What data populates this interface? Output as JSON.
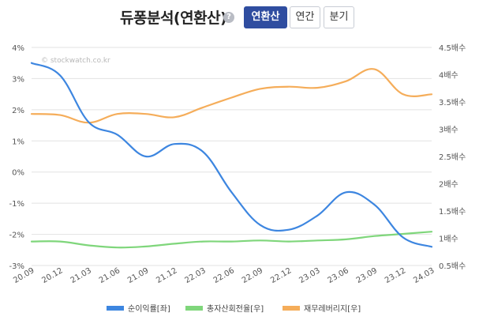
{
  "header": {
    "title": "듀퐁분석(연환산)",
    "help_glyph": "?",
    "tabs": [
      {
        "label": "연환산",
        "active": true
      },
      {
        "label": "연간",
        "active": false
      },
      {
        "label": "분기",
        "active": false
      }
    ]
  },
  "watermark": "© stockwatch.co.kr",
  "colors": {
    "roe": "#3d86e0",
    "turnover": "#7fd67b",
    "leverage": "#f5ad5a",
    "grid": "#e2e2e2"
  },
  "chart_data": {
    "type": "line",
    "x": [
      "20.09",
      "20.12",
      "21.03",
      "21.06",
      "21.09",
      "21.12",
      "22.03",
      "22.06",
      "22.09",
      "22.12",
      "23.03",
      "23.06",
      "23.09",
      "23.12",
      "24.03"
    ],
    "x_tick_labels": [
      "20.09",
      "20.12",
      "21.03",
      "21.06",
      "21.09",
      "21.12",
      "22.03",
      "22.06",
      "22.09",
      "22.12",
      "23.03",
      "23.06",
      "23.09",
      "23.12",
      "24.03"
    ],
    "left_axis": {
      "ticks": [
        "4%",
        "3%",
        "2%",
        "1%",
        "0%",
        "-1%",
        "-2%",
        "-3%"
      ],
      "ylim": [
        -3,
        4
      ]
    },
    "right_axis": {
      "ticks": [
        "4.5배수",
        "4배수",
        "3.5배수",
        "3배수",
        "2.5배수",
        "2배수",
        "1.5배수",
        "1배수",
        "0.5배수"
      ],
      "ylim": [
        0.5,
        4.5
      ]
    },
    "series": [
      {
        "name": "순이익률[좌]",
        "axis": "left",
        "color": "#3d86e0",
        "values": [
          3.5,
          3.1,
          1.6,
          1.2,
          0.5,
          0.9,
          0.65,
          -0.65,
          -1.7,
          -1.85,
          -1.4,
          -0.65,
          -1.05,
          -2.1,
          -2.4
        ]
      },
      {
        "name": "총자산회전율[우]",
        "axis": "right",
        "color": "#7fd67b",
        "values": [
          0.94,
          0.94,
          0.87,
          0.83,
          0.85,
          0.9,
          0.94,
          0.94,
          0.96,
          0.94,
          0.96,
          0.98,
          1.04,
          1.08,
          1.12
        ]
      },
      {
        "name": "재무레버리지[우]",
        "axis": "right",
        "color": "#f5ad5a",
        "values": [
          3.28,
          3.26,
          3.12,
          3.28,
          3.28,
          3.22,
          3.4,
          3.58,
          3.74,
          3.78,
          3.76,
          3.88,
          4.1,
          3.64,
          3.64
        ]
      }
    ],
    "legend": [
      "순이익률[좌]",
      "총자산회전율[우]",
      "재무레버리지[우]"
    ],
    "legend_position": "bottom",
    "grid": true
  }
}
